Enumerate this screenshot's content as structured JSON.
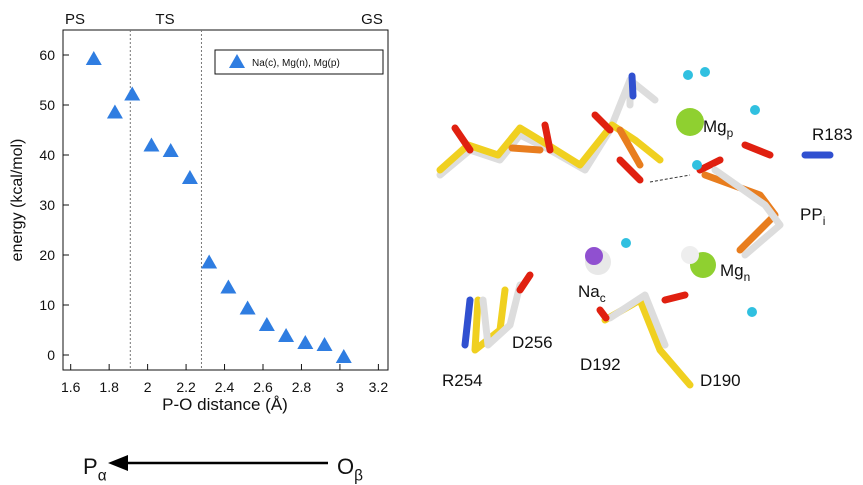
{
  "chart_data": {
    "type": "scatter",
    "x_label": "P-O distance (Å)",
    "y_label": "energy (kcal/mol)",
    "region_labels": [
      "PS",
      "TS",
      "GS"
    ],
    "vlines": [
      1.91,
      2.28
    ],
    "series": [
      {
        "name": "Na(c), Mg(n), Mg(p)",
        "color": "#2f7de1",
        "x": [
          1.72,
          1.83,
          1.92,
          2.02,
          2.12,
          2.22,
          2.32,
          2.42,
          2.52,
          2.62,
          2.72,
          2.82,
          2.92,
          3.02
        ],
        "values": [
          59.2,
          48.5,
          52.1,
          41.9,
          40.8,
          35.4,
          18.5,
          13.5,
          9.3,
          6.0,
          3.8,
          2.4,
          2.0,
          -0.4
        ]
      }
    ],
    "xlim": [
      1.56,
      3.25
    ],
    "ylim": [
      -3,
      65
    ],
    "xticks": [
      1.6,
      1.8,
      2,
      2.2,
      2.4,
      2.6,
      2.8,
      3,
      3.2
    ],
    "yticks": [
      0,
      10,
      20,
      30,
      40,
      50,
      60
    ],
    "legend": "top-right"
  },
  "arrow": {
    "left": {
      "text": "P",
      "sub": "α"
    },
    "right": {
      "text": "O",
      "sub": "β"
    }
  },
  "structure_labels": [
    {
      "text": "R183",
      "sub": ""
    },
    {
      "text": "Mg",
      "sub": "p"
    },
    {
      "text": "PP",
      "sub": "i"
    },
    {
      "text": "Na",
      "sub": "c"
    },
    {
      "text": "Mg",
      "sub": "n"
    },
    {
      "text": "D256",
      "sub": ""
    },
    {
      "text": "R254",
      "sub": ""
    },
    {
      "text": "D192",
      "sub": ""
    },
    {
      "text": "D190",
      "sub": ""
    }
  ]
}
